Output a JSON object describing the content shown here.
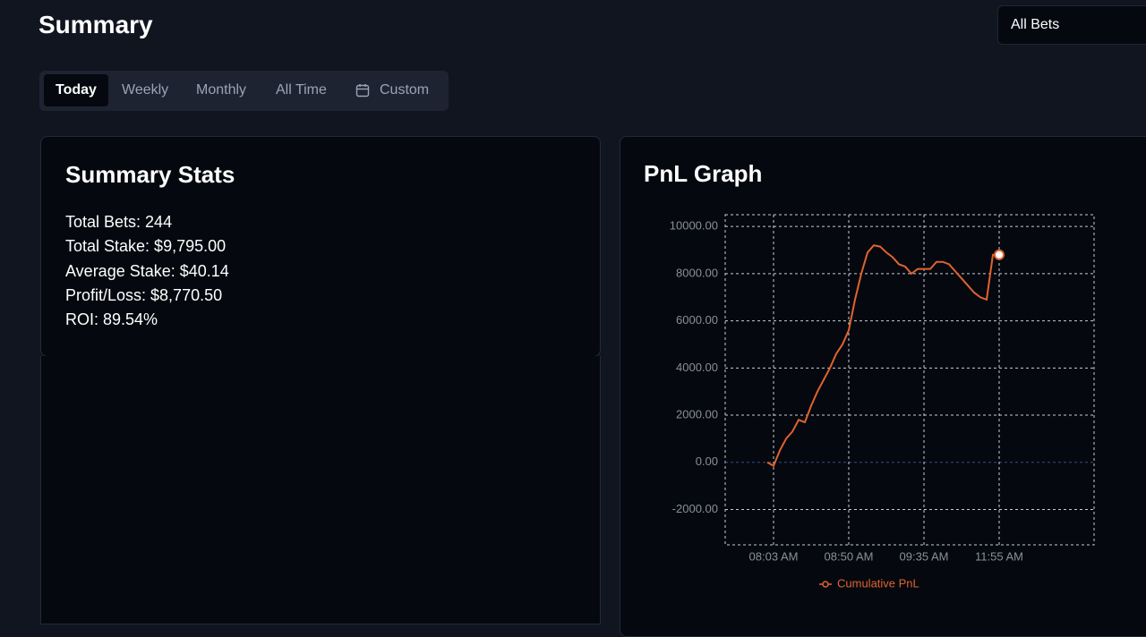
{
  "header": {
    "title": "Summary",
    "filter": "All Bets"
  },
  "tabs": [
    "Today",
    "Weekly",
    "Monthly",
    "All Time",
    "Custom"
  ],
  "stats": {
    "title": "Summary Stats",
    "items": [
      "Total Bets: 244",
      "Total Stake: $9,795.00",
      "Average Stake: $40.14",
      "Profit/Loss: $8,770.50",
      "ROI: 89.54%"
    ]
  },
  "pnl": {
    "title": "PnL Graph"
  },
  "chart_data": {
    "type": "line",
    "categories": [
      null,
      "08:03 AM",
      null,
      null,
      null,
      null,
      null,
      null,
      null,
      null,
      null,
      null,
      null,
      "08:50 AM",
      null,
      null,
      null,
      null,
      null,
      null,
      null,
      null,
      null,
      null,
      null,
      "09:35 AM",
      null,
      null,
      null,
      null,
      null,
      null,
      null,
      null,
      null,
      null,
      null,
      "11:55 AM"
    ],
    "series": [
      {
        "name": "Cumulative PnL",
        "color": "#e0632e",
        "values": [
          0,
          -150,
          500,
          1000,
          1300,
          1800,
          1700,
          2400,
          3000,
          3500,
          4000,
          4600,
          5000,
          5600,
          6900,
          8000,
          8900,
          9200,
          9150,
          8900,
          8700,
          8400,
          8300,
          8000,
          8200,
          8200,
          8200,
          8500,
          8500,
          8400,
          8100,
          7800,
          7500,
          7200,
          7000,
          6900,
          8800,
          8800
        ]
      }
    ],
    "ylim": [
      -3500,
      10500
    ],
    "yticks": [
      {
        "value": -2000,
        "label": "-2000.00"
      },
      {
        "value": 0,
        "label": "0.00"
      },
      {
        "value": 2000,
        "label": "2000.00"
      },
      {
        "value": 4000,
        "label": "4000.00"
      },
      {
        "value": 6000,
        "label": "6000.00"
      },
      {
        "value": 8000,
        "label": "8000.00"
      },
      {
        "value": 10000,
        "label": "10000.00"
      }
    ],
    "grid": true
  }
}
